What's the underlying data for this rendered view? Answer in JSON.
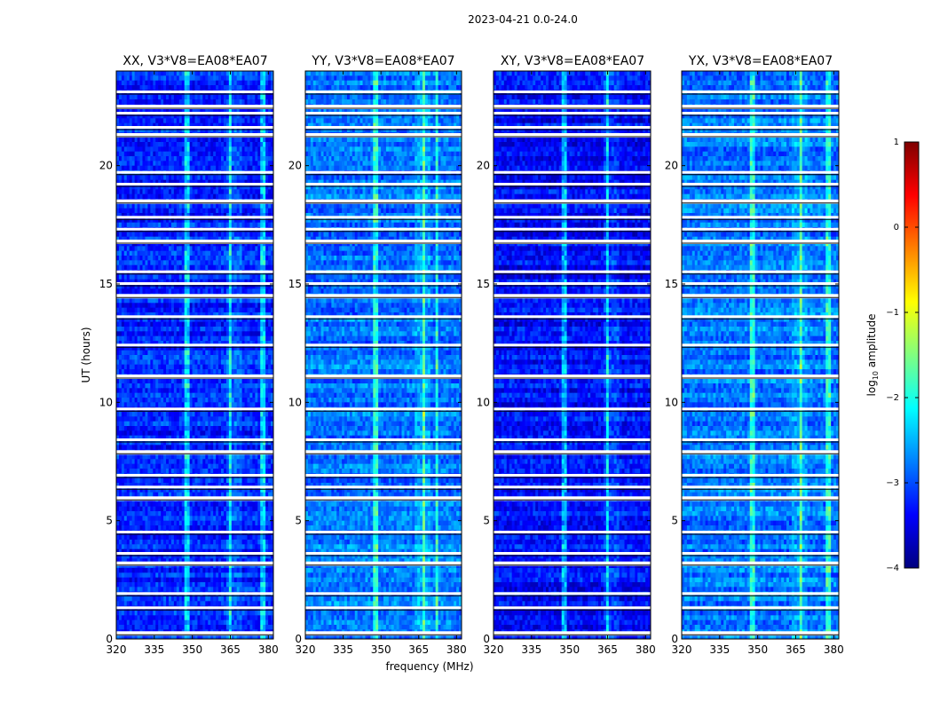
{
  "figure": {
    "suptitle": "2023-04-21 0.0-24.0"
  },
  "chart_data": [
    {
      "type": "heatmap",
      "title": "XX, V3*V8=EA08*EA07",
      "xlabel": "",
      "ylabel": "UT (hours)",
      "xlim": [
        320,
        382
      ],
      "ylim": [
        0,
        24
      ],
      "xticks": [
        320,
        335,
        350,
        365,
        380
      ],
      "yticks": [
        0,
        5,
        10,
        15,
        20
      ],
      "intensity": "log10 amplitude, mostly between -3.5 and -2"
    },
    {
      "type": "heatmap",
      "title": "YY, V3*V8=EA08*EA07",
      "xlabel": "frequency (MHz)",
      "ylabel": "",
      "xlim": [
        320,
        382
      ],
      "ylim": [
        0,
        24
      ],
      "xticks": [
        320,
        335,
        350,
        365,
        380
      ],
      "yticks": [
        0,
        5,
        10,
        15,
        20
      ],
      "intensity": "log10 amplitude, mostly between -3 and -2"
    },
    {
      "type": "heatmap",
      "title": "XY, V3*V8=EA08*EA07",
      "xlabel": "",
      "ylabel": "",
      "xlim": [
        320,
        382
      ],
      "ylim": [
        0,
        24
      ],
      "xticks": [
        320,
        335,
        350,
        365,
        380
      ],
      "yticks": [
        0,
        5,
        10,
        15,
        20
      ],
      "intensity": "log10 amplitude, mostly between -3.5 and -2.5"
    },
    {
      "type": "heatmap",
      "title": "YX, V3*V8=EA08*EA07",
      "xlabel": "",
      "ylabel": "",
      "xlim": [
        320,
        382
      ],
      "ylim": [
        0,
        24
      ],
      "xticks": [
        320,
        335,
        350,
        365,
        380
      ],
      "yticks": [
        0,
        5,
        10,
        15,
        20
      ],
      "intensity": "log10 amplitude, mostly between -3 and -2"
    }
  ],
  "colorbar": {
    "label": "log10 amplitude",
    "label_main": "log",
    "label_sub": "10",
    "label_rest": " amplitude",
    "min": -4,
    "max": 1,
    "ticks": [
      1,
      0,
      -1,
      -2,
      -3,
      -4
    ],
    "tick_labels": [
      "1",
      "0",
      "−1",
      "−2",
      "−3",
      "−4"
    ],
    "colormap": "jet",
    "colors": [
      "#00007f",
      "#0000ff",
      "#0080ff",
      "#00ffff",
      "#80ff80",
      "#ffff00",
      "#ff8000",
      "#ff0000",
      "#7f0000"
    ]
  },
  "flagged_rows_hours": [
    0.25,
    1.3,
    1.9,
    3.2,
    3.6,
    4.5,
    5.95,
    6.4,
    6.9,
    7.9,
    8.4,
    9.7,
    11.1,
    12.4,
    13.6,
    14.5,
    15.0,
    15.5,
    16.8,
    17.3,
    17.8,
    18.5,
    19.2,
    19.7,
    21.3,
    21.6,
    22.2,
    22.5,
    23.1
  ]
}
